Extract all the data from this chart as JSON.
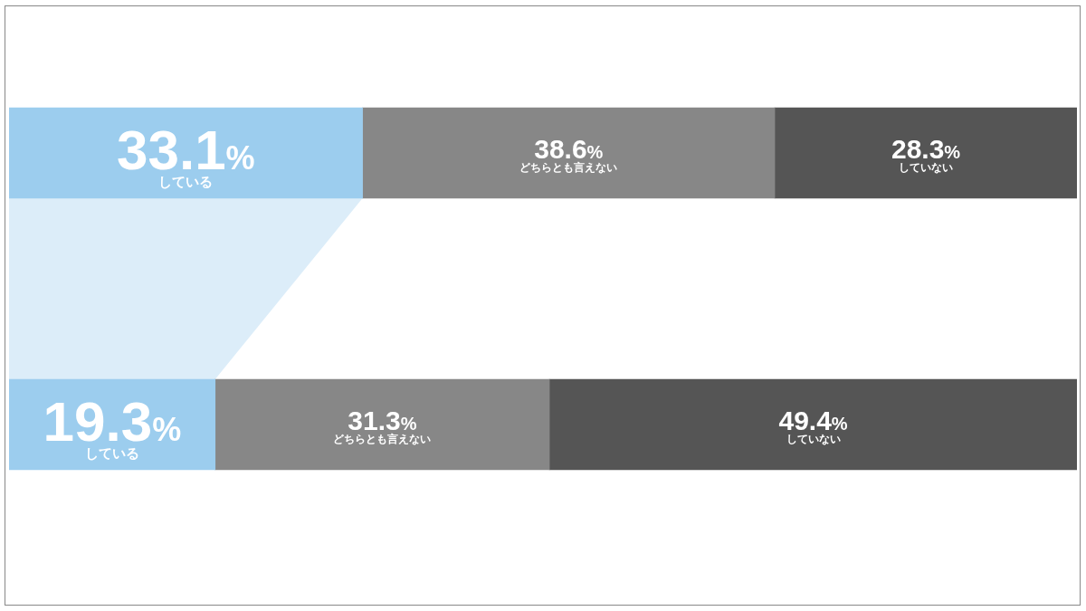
{
  "chart_data": {
    "type": "bar",
    "orientation": "horizontal",
    "stacked": true,
    "categories": [
      null,
      null
    ],
    "series": [
      {
        "name": "している",
        "color": "#9ccdee",
        "values": [
          33.1,
          19.3
        ],
        "value_labels": [
          "33.1%",
          "19.3%"
        ]
      },
      {
        "name": "どちらとも言えない",
        "color": "#878787",
        "values": [
          38.6,
          31.3
        ],
        "value_labels": [
          "38.6%",
          "31.3%"
        ]
      },
      {
        "name": "していない",
        "color": "#555555",
        "values": [
          28.3,
          49.4
        ],
        "value_labels": [
          "28.3%",
          "49.4%"
        ]
      }
    ],
    "xlim": [
      0,
      100
    ],
    "tick_labels": false,
    "grid": false,
    "legend": false
  }
}
